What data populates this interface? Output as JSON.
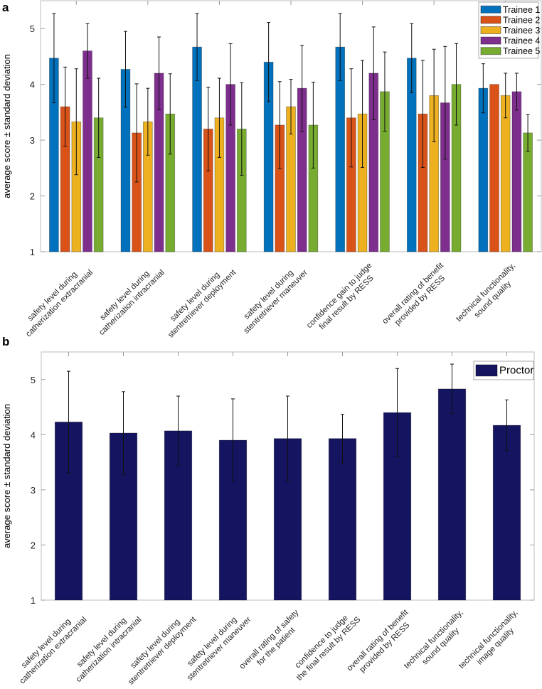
{
  "chart_data": [
    {
      "panel": "a",
      "type": "bar",
      "title": "",
      "xlabel": "",
      "ylabel": "average score ± standard deviation",
      "ylim": [
        1,
        5.5
      ],
      "xlim": [
        0.5,
        7.5
      ],
      "yticks": [
        1,
        2,
        3,
        4,
        5
      ],
      "grid": false,
      "legend_placement": "top-right",
      "categories": [
        [
          "safety level during",
          "catherization extracranial"
        ],
        [
          "safety level during",
          "catherization intracranial"
        ],
        [
          "safety level during",
          "stentretriever deployment"
        ],
        [
          "safety level during",
          "stentretriever maneuver"
        ],
        [
          "confidence gain to judge",
          "final result by RESS"
        ],
        [
          "overall rating of benefit",
          "provided by RESS"
        ],
        [
          "technical functionality,",
          "sound quality"
        ]
      ],
      "series": [
        {
          "name": "Trainee 1",
          "color": "#0072BD",
          "values": [
            4.47,
            4.27,
            4.67,
            4.4,
            4.67,
            4.47,
            3.93
          ],
          "sd": [
            0.8,
            0.68,
            0.6,
            0.71,
            0.6,
            0.62,
            0.44
          ]
        },
        {
          "name": "Trainee 2",
          "color": "#D95319",
          "values": [
            3.6,
            3.13,
            3.2,
            3.27,
            3.4,
            3.47,
            4.0
          ],
          "sd": [
            0.71,
            0.88,
            0.75,
            0.78,
            0.88,
            0.96,
            0.0
          ]
        },
        {
          "name": "Trainee 3",
          "color": "#EDB120",
          "values": [
            3.33,
            3.33,
            3.4,
            3.6,
            3.47,
            3.8,
            3.8
          ],
          "sd": [
            0.95,
            0.6,
            0.71,
            0.49,
            0.96,
            0.83,
            0.4
          ]
        },
        {
          "name": "Trainee 4",
          "color": "#7E2F8E",
          "values": [
            4.6,
            4.2,
            4.0,
            3.93,
            4.2,
            3.67,
            3.87
          ],
          "sd": [
            0.49,
            0.65,
            0.73,
            0.77,
            0.83,
            1.01,
            0.33
          ]
        },
        {
          "name": "Trainee 5",
          "color": "#77AC30",
          "values": [
            3.4,
            3.47,
            3.2,
            3.27,
            3.87,
            4.0,
            3.13
          ],
          "sd": [
            0.71,
            0.72,
            0.83,
            0.77,
            0.71,
            0.73,
            0.33
          ]
        }
      ]
    },
    {
      "panel": "b",
      "type": "bar",
      "title": "",
      "xlabel": "",
      "ylabel": "average score ± standard deviation",
      "ylim": [
        1,
        5.5
      ],
      "xlim": [
        0.5,
        9.5
      ],
      "yticks": [
        1,
        2,
        3,
        4,
        5
      ],
      "grid": false,
      "legend_placement": "top-right",
      "categories": [
        [
          "safety level during",
          "catherization extracranial"
        ],
        [
          "safety level during",
          "catherization intracranial"
        ],
        [
          "safety level during",
          "stentretriever deployment"
        ],
        [
          "safety level during",
          "stentretriever maneuver"
        ],
        [
          "overall rating of safety",
          "for the patient"
        ],
        [
          "confidence to judge",
          "the final result by RESS"
        ],
        [
          "overall rating of benefit",
          "provided by RESS"
        ],
        [
          "technical functionality,",
          "sound quality"
        ],
        [
          "technical functionality,",
          "image quality"
        ]
      ],
      "series": [
        {
          "name": "Proctor",
          "color": "#141460",
          "values": [
            4.23,
            4.03,
            4.07,
            3.9,
            3.93,
            3.93,
            4.4,
            4.83,
            4.17
          ],
          "sd": [
            0.92,
            0.75,
            0.63,
            0.75,
            0.77,
            0.44,
            0.8,
            0.45,
            0.46
          ]
        }
      ]
    }
  ]
}
